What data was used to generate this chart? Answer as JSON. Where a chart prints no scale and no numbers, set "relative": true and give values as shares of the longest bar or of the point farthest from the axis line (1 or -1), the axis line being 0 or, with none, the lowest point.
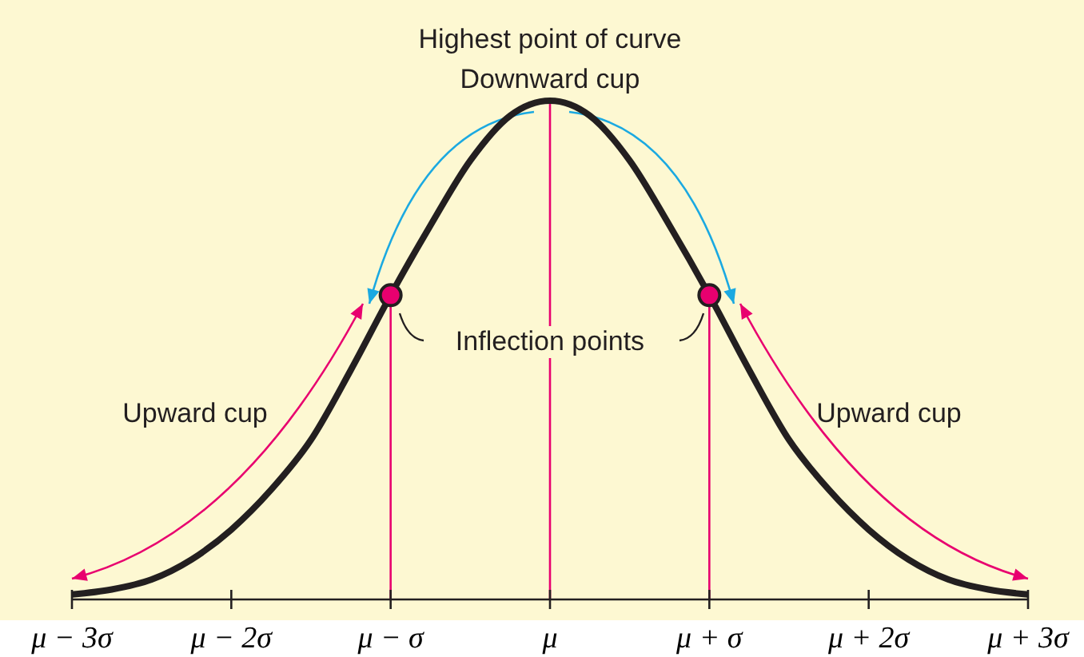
{
  "chart_data": {
    "type": "line",
    "relative": true,
    "xlim": [
      -3,
      3
    ],
    "xticks": [
      {
        "value": -3,
        "label": "μ − 3σ"
      },
      {
        "value": -2,
        "label": "μ − 2σ"
      },
      {
        "value": -1,
        "label": "μ − σ"
      },
      {
        "value": 0,
        "label": "μ"
      },
      {
        "value": 1,
        "label": "μ + σ"
      },
      {
        "value": 2,
        "label": "μ + 2σ"
      },
      {
        "value": 3,
        "label": "μ + 3σ"
      }
    ],
    "series": [
      {
        "color": "#231f20",
        "x": [
          -3,
          -2.75,
          -2.5,
          -2.25,
          -2,
          -1.75,
          -1.5,
          -1.25,
          -1,
          -0.75,
          -0.5,
          -0.25,
          0,
          0.25,
          0.5,
          0.75,
          1,
          1.25,
          1.5,
          1.75,
          2,
          2.25,
          2.5,
          2.75,
          3
        ],
        "values": [
          0.01,
          0.02,
          0.04,
          0.08,
          0.14,
          0.22,
          0.32,
          0.46,
          0.61,
          0.75,
          0.88,
          0.97,
          1,
          0.97,
          0.88,
          0.75,
          0.61,
          0.46,
          0.32,
          0.22,
          0.14,
          0.08,
          0.04,
          0.02,
          0.01
        ]
      },
      {
        "type": "scatter",
        "color": "#e8006f",
        "marker": "circle",
        "x": [
          -1,
          1
        ],
        "values": [
          0.61,
          0.61
        ]
      }
    ],
    "ref_lines": [
      {
        "axis": "x",
        "value": -1,
        "color": "#e8006f"
      },
      {
        "axis": "x",
        "value": 0,
        "color": "#e8006f"
      },
      {
        "axis": "x",
        "value": 1,
        "color": "#e8006f"
      }
    ],
    "annotations": [
      {
        "text": "Highest point of curve",
        "x": 0,
        "y": 1
      },
      "Downward cup",
      "Inflection points",
      "Upward cup",
      "Upward cup"
    ]
  }
}
